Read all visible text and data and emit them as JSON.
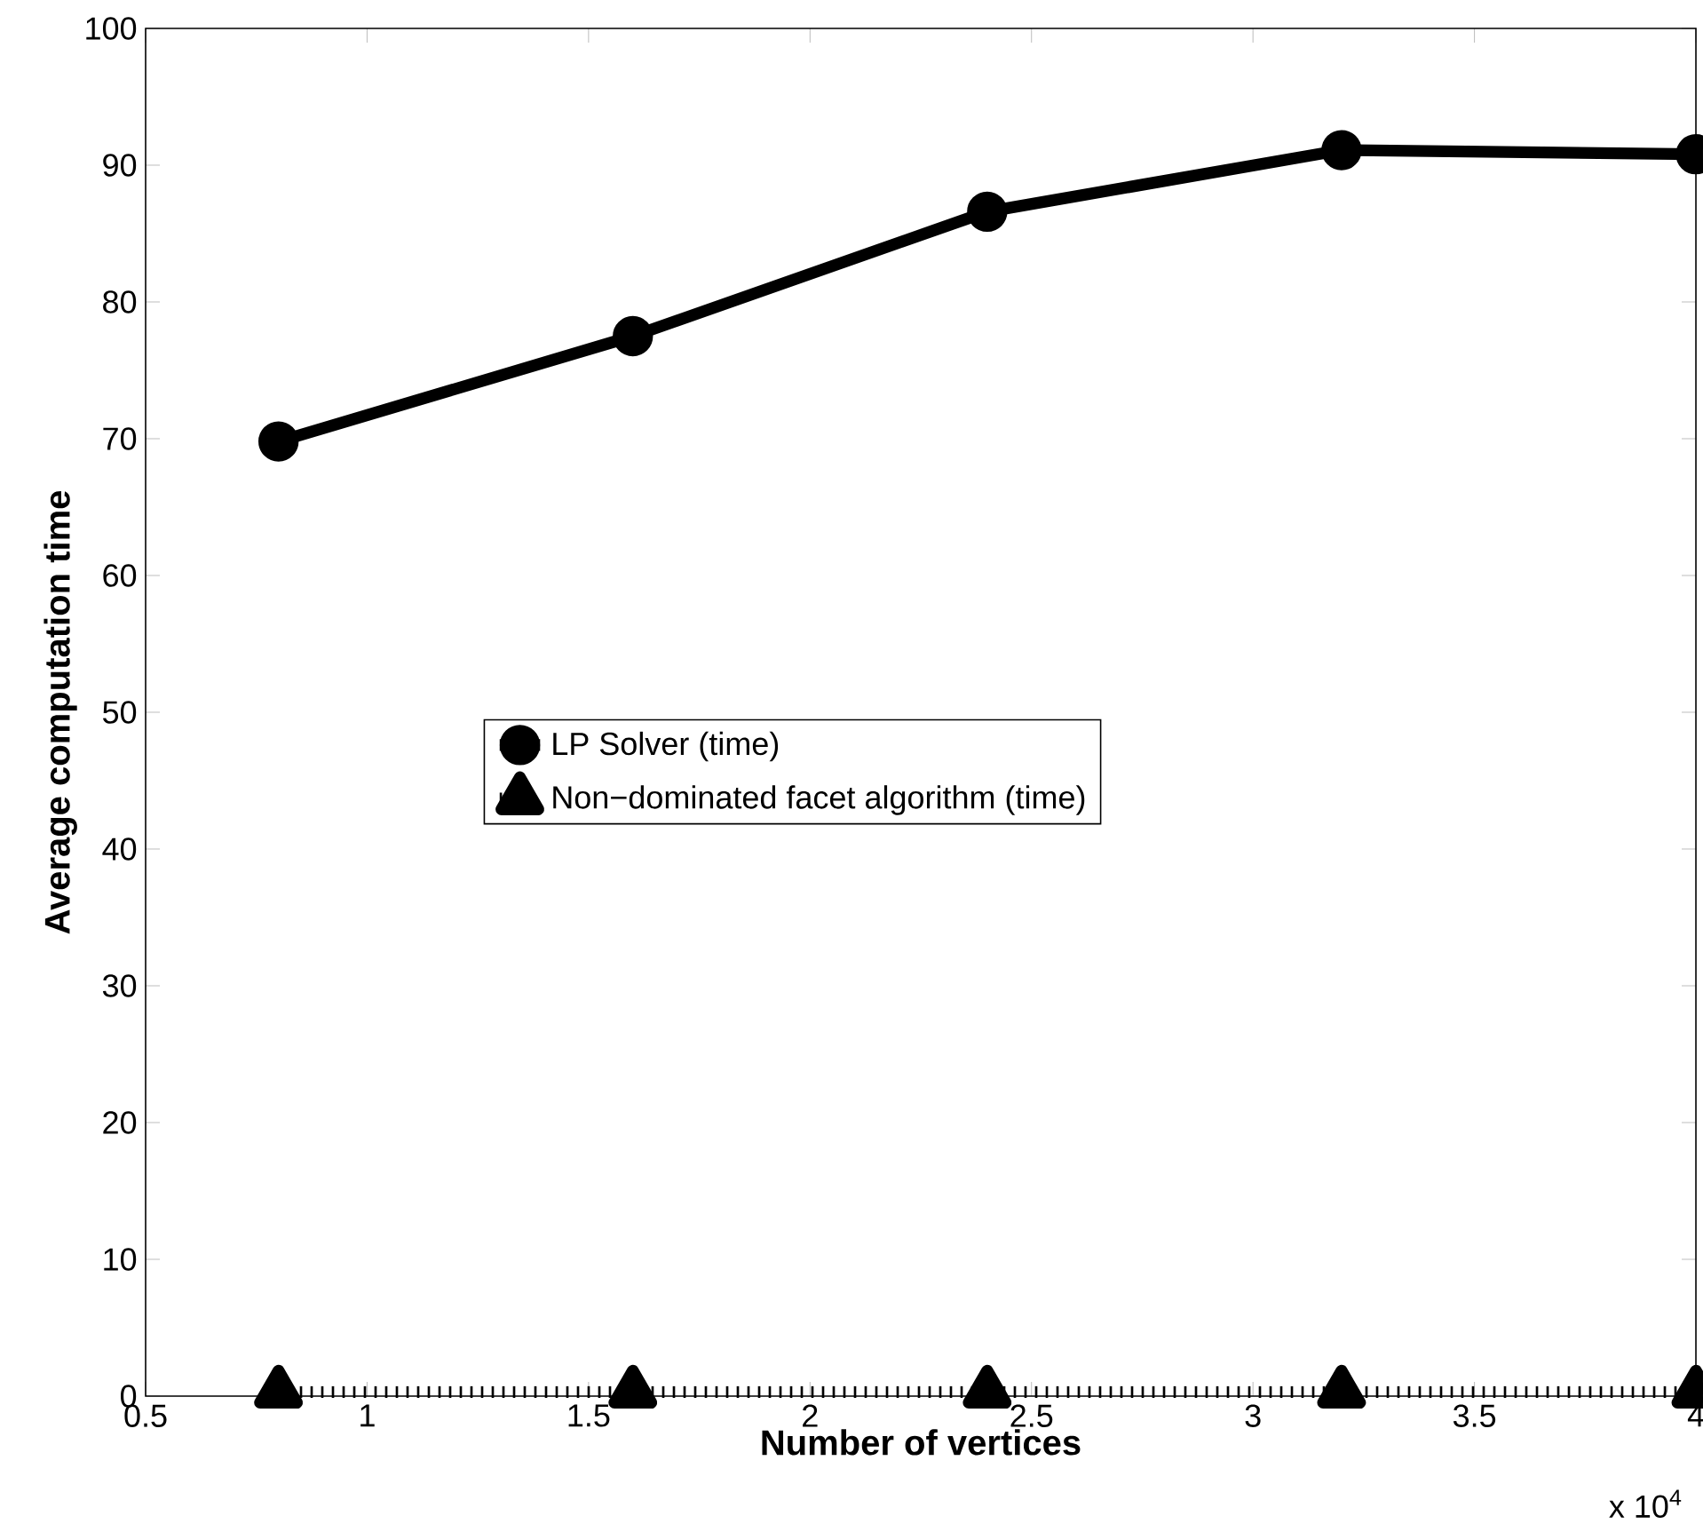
{
  "chart_data": {
    "type": "line",
    "xlabel": "Number of vertices",
    "ylabel": "Average computation time",
    "x": [
      0.8,
      1.6,
      2.4,
      3.2,
      4.0
    ],
    "series": [
      {
        "name": "LP Solver (time)",
        "color": "#000000",
        "marker": "circle",
        "line_style": "solid",
        "values": [
          69.8,
          77.5,
          86.6,
          91.1,
          90.8
        ]
      },
      {
        "name": "Non−dominated facet algorithm (time)",
        "color": "#000000",
        "marker": "triangle",
        "line_style": "dotted",
        "values": [
          0.3,
          0.3,
          0.3,
          0.3,
          0.3
        ]
      }
    ],
    "xlim": [
      0.5,
      4
    ],
    "ylim": [
      0,
      100
    ],
    "xticks": [
      0.5,
      1,
      1.5,
      2,
      2.5,
      3,
      3.5,
      4
    ],
    "yticks": [
      0,
      10,
      20,
      30,
      40,
      50,
      60,
      70,
      80,
      90,
      100
    ],
    "annotations": [
      "x 10$^{4}$"
    ],
    "grid": false,
    "legend": "center"
  }
}
